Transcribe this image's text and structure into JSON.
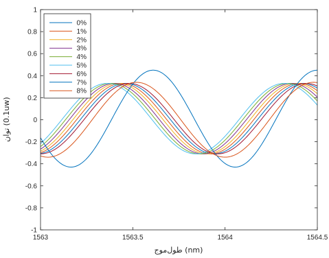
{
  "chart_data": {
    "type": "line",
    "title": "",
    "xlabel": "طول‌موج (nm)",
    "ylabel": "توان (0.1uw)",
    "xlim": [
      1563,
      1564.5
    ],
    "ylim": [
      -1,
      1
    ],
    "xticks": [
      "1563",
      "1563.5",
      "1564",
      "1564.5"
    ],
    "yticks": [
      "1",
      "0.8",
      "0.6",
      "0.4",
      "0.2",
      "0",
      "-0.2",
      "-0.4",
      "-0.6",
      "-0.8",
      "-1"
    ],
    "grid": false,
    "legend_position": "top-left",
    "series": [
      {
        "name": "0%",
        "color": "#0072BD",
        "params": {
          "amp": 0.32,
          "period": 0.96,
          "peak": 1563.46,
          "offset": 0.01
        }
      },
      {
        "name": "1%",
        "color": "#D95319",
        "params": {
          "amp": 0.32,
          "period": 0.96,
          "peak": 1563.44,
          "offset": 0.01
        }
      },
      {
        "name": "2%",
        "color": "#EDB120",
        "params": {
          "amp": 0.32,
          "period": 0.96,
          "peak": 1563.42,
          "offset": 0.01
        }
      },
      {
        "name": "3%",
        "color": "#7E2F8E",
        "params": {
          "amp": 0.32,
          "period": 0.96,
          "peak": 1563.4,
          "offset": 0.01
        }
      },
      {
        "name": "4%",
        "color": "#77AC30",
        "params": {
          "amp": 0.32,
          "period": 0.96,
          "peak": 1563.38,
          "offset": 0.01
        }
      },
      {
        "name": "5%",
        "color": "#4DBEEE",
        "params": {
          "amp": 0.32,
          "period": 0.96,
          "peak": 1563.36,
          "offset": 0.01
        }
      },
      {
        "name": "6%",
        "color": "#A2142F",
        "params": {
          "amp": 0.32,
          "period": 0.96,
          "peak": 1563.48,
          "offset": 0.01
        }
      },
      {
        "name": "7%",
        "color": "#0072BD",
        "params": {
          "amp": 0.44,
          "period": 0.89,
          "peak": 1563.61,
          "offset": 0.01
        }
      },
      {
        "name": "8%",
        "color": "#D95319",
        "params": {
          "amp": 0.34,
          "period": 0.96,
          "peak": 1563.52,
          "offset": 0.0
        }
      }
    ]
  }
}
